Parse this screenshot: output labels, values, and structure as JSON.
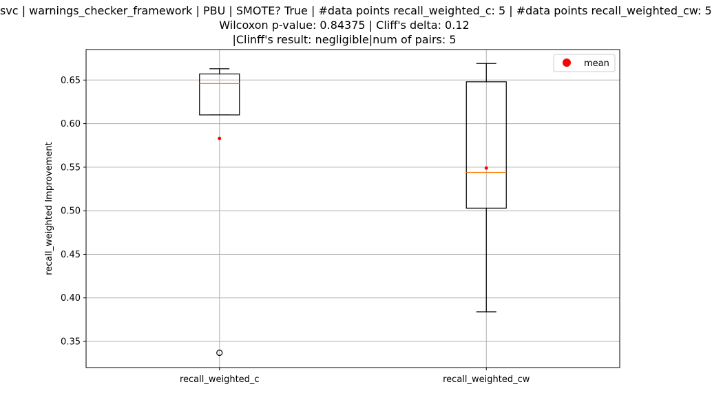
{
  "chart_data": {
    "type": "box",
    "title_lines": [
      "svc | warnings_checker_framework | PBU | SMOTE? True | #data points recall_weighted_c: 5 | #data points recall_weighted_cw: 5",
      "Wilcoxon p-value: 0.84375 | Cliff's delta: 0.12",
      "|Clinff's result: negligible|num of pairs: 5"
    ],
    "ylabel": "recall_weighted Improvement",
    "ylim": [
      0.32,
      0.685
    ],
    "yticks": [
      0.35,
      0.4,
      0.45,
      0.5,
      0.55,
      0.6,
      0.65
    ],
    "ytick_labels": [
      "0.35",
      "0.40",
      "0.45",
      "0.50",
      "0.55",
      "0.60",
      "0.65"
    ],
    "grid": true,
    "legend": {
      "position": "top-right",
      "entries": [
        {
          "label": "mean",
          "color": "#ff0000",
          "marker": "circle"
        }
      ]
    },
    "categories": [
      "recall_weighted_c",
      "recall_weighted_cw"
    ],
    "boxes": [
      {
        "name": "recall_weighted_c",
        "whisker_low": 0.61,
        "q1": 0.61,
        "median": 0.646,
        "q3": 0.657,
        "whisker_high": 0.663,
        "mean": 0.583,
        "outliers": [
          0.337
        ]
      },
      {
        "name": "recall_weighted_cw",
        "whisker_low": 0.384,
        "q1": 0.503,
        "median": 0.544,
        "q3": 0.648,
        "whisker_high": 0.669,
        "mean": 0.549,
        "outliers": []
      }
    ],
    "colors": {
      "box": "#000000",
      "median": "#ff7f0e",
      "mean": "#ff0000",
      "grid": "#b0b0b0"
    }
  }
}
